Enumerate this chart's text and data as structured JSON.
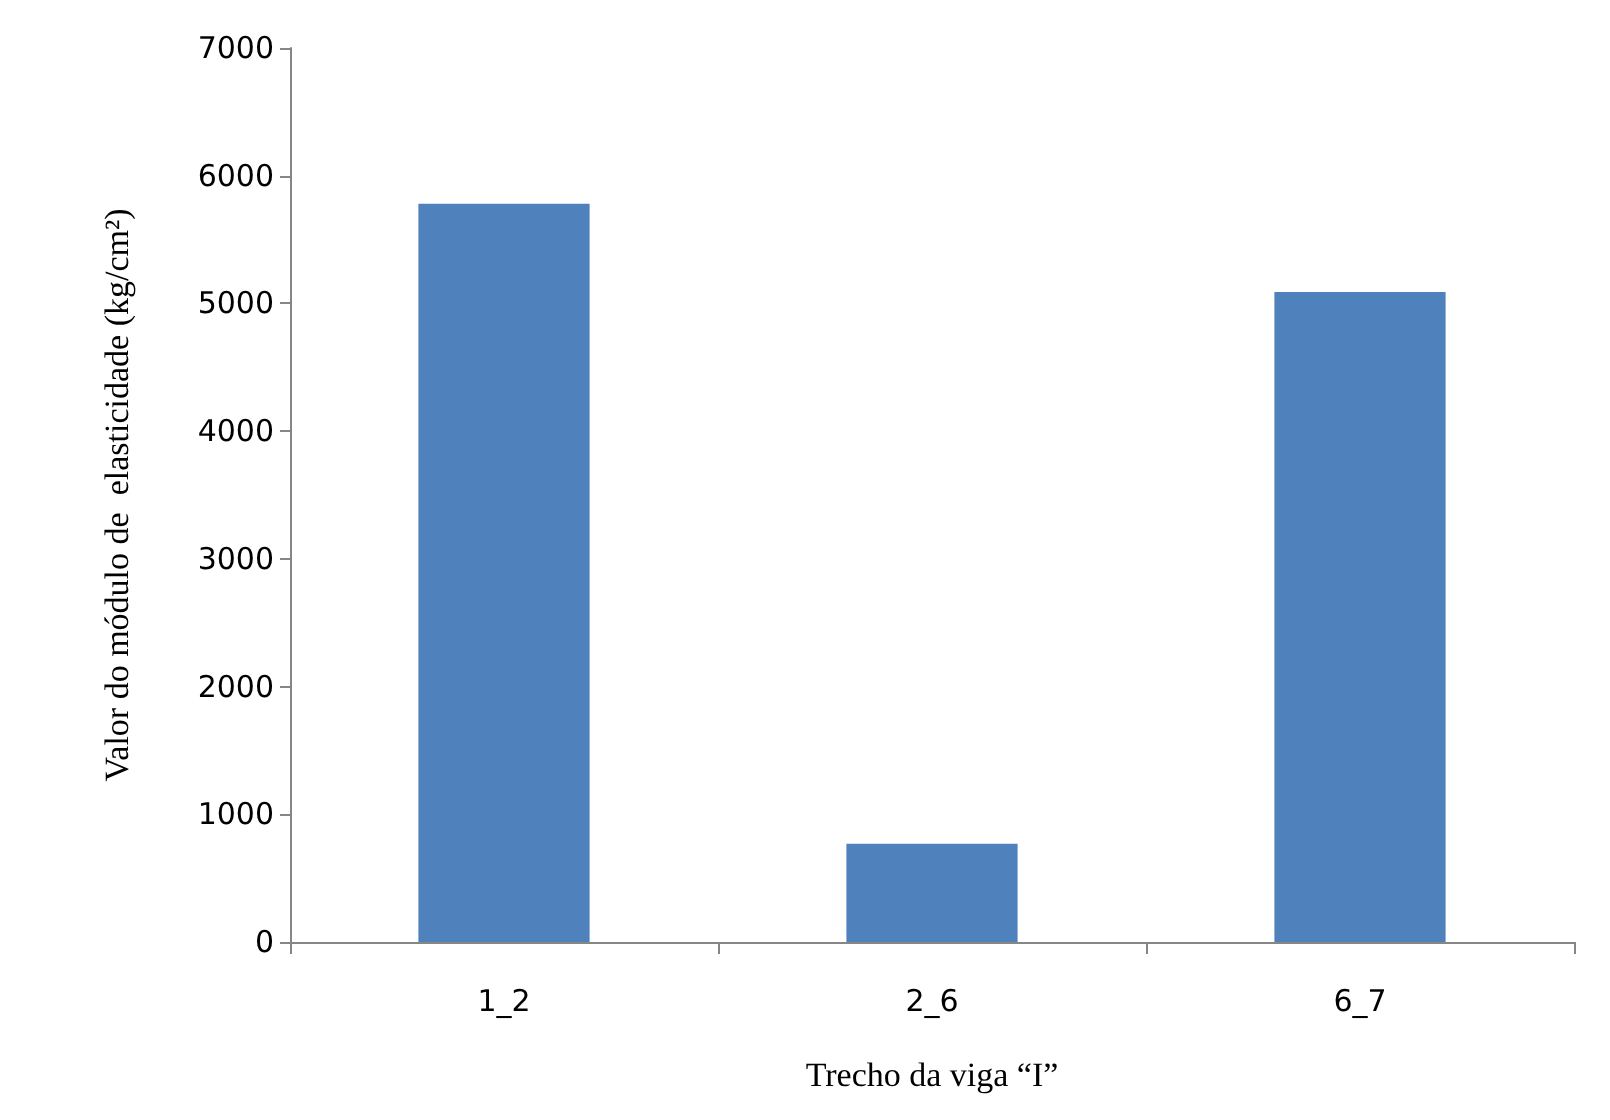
{
  "chart_data": {
    "type": "bar",
    "xlabel": "Trecho da viga “I”",
    "ylabel": "Valor do módulo de  elasticidade (kg/cm²)",
    "categories": [
      "1_2",
      "2_6",
      "6_7"
    ],
    "values": [
      5780,
      770,
      5090
    ],
    "color": "#4f81bd",
    "ylim": [
      0,
      7000
    ],
    "yticks": [
      0,
      1000,
      2000,
      3000,
      4000,
      5000,
      6000,
      7000
    ],
    "grid": false
  }
}
